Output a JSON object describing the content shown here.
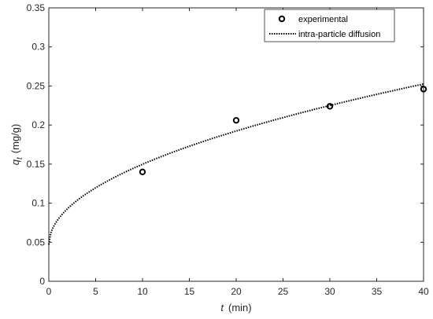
{
  "chart_data": {
    "type": "scatter",
    "xlabel": {
      "symbol": "t",
      "unit": "(min)"
    },
    "ylabel": {
      "symbol": "q",
      "subscript": "t",
      "unit": "(mg/g)"
    },
    "xlim": [
      0,
      40
    ],
    "ylim": [
      0,
      0.35
    ],
    "x_ticks": [
      0,
      5,
      10,
      15,
      20,
      25,
      30,
      35,
      40
    ],
    "y_ticks": [
      0,
      0.05,
      0.1,
      0.15,
      0.2,
      0.25,
      0.3,
      0.35
    ],
    "x_tick_labels": [
      "0",
      "5",
      "10",
      "15",
      "20",
      "25",
      "30",
      "35",
      "40"
    ],
    "y_tick_labels": [
      "0",
      "0.05",
      "0.1",
      "0.15",
      "0.2",
      "0.25",
      "0.3",
      "0.35"
    ],
    "grid": false,
    "legend_position": "top-right",
    "series": [
      {
        "name": "experimental",
        "kind": "markers",
        "marker": "circle",
        "x": [
          10,
          20,
          30,
          40
        ],
        "y": [
          0.14,
          0.206,
          0.224,
          0.246
        ]
      },
      {
        "name": "intra-particle diffusion",
        "kind": "line",
        "line_style": "dotted",
        "model": "sqrt",
        "intercept": 0.047,
        "slope": 0.0325,
        "x_start": 0,
        "x_end": 40
      }
    ],
    "colors": {
      "markers": "#000000",
      "line": "#000000",
      "axes": "#262626"
    }
  }
}
